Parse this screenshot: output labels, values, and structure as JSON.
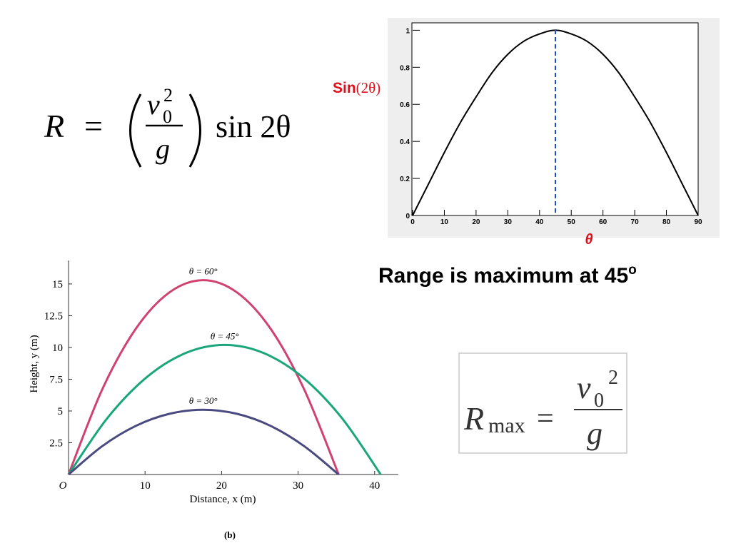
{
  "formula": {
    "lhs": "R",
    "eq": "=",
    "v": "v",
    "sub": "0",
    "sup": "2",
    "g": "g",
    "func": "sin 2θ"
  },
  "chart_data": [
    {
      "type": "line",
      "ylabel": [
        "Sin",
        "(2θ)"
      ],
      "xlabel": "θ",
      "x": [
        0,
        5,
        10,
        15,
        20,
        25,
        30,
        35,
        40,
        45,
        50,
        55,
        60,
        65,
        70,
        75,
        80,
        85,
        90
      ],
      "values": [
        0,
        0.17,
        0.34,
        0.5,
        0.64,
        0.77,
        0.87,
        0.94,
        0.98,
        1,
        0.98,
        0.94,
        0.87,
        0.77,
        0.64,
        0.5,
        0.34,
        0.17,
        0
      ],
      "color": "#000000",
      "marker_line": {
        "x": 45,
        "color": "#1a4fd6"
      },
      "xlim": [
        0,
        90
      ],
      "ylim": [
        0,
        1.04
      ],
      "xticks": [
        0,
        10,
        20,
        30,
        40,
        50,
        60,
        70,
        80,
        90
      ],
      "yticks": [
        0,
        0.2,
        0.4,
        0.6,
        0.8,
        1
      ]
    },
    {
      "type": "trajectory",
      "ylabel": "Height, y (m)",
      "xlabel": "Distance, x (m)",
      "caption": "(b)",
      "series": [
        {
          "name": "θ = 60°",
          "color": "#d0426f",
          "x": [
            0,
            4.4,
            8.8,
            13.2,
            17.6,
            22.0,
            26.4,
            30.8,
            35.3
          ],
          "values": [
            0,
            6.69,
            11.48,
            14.34,
            15.3,
            14.34,
            11.48,
            6.69,
            0
          ]
        },
        {
          "name": "θ = 45°",
          "color": "#1aa67a",
          "x": [
            0,
            5.1,
            10.2,
            15.3,
            20.4,
            25.5,
            30.6,
            35.7,
            40.8
          ],
          "values": [
            0,
            4.46,
            7.65,
            9.56,
            10.2,
            9.56,
            7.65,
            4.46,
            0
          ]
        },
        {
          "name": "θ = 30°",
          "color": "#4a4a80",
          "x": [
            0,
            4.4,
            8.8,
            13.2,
            17.6,
            22.0,
            26.4,
            30.8,
            35.3
          ],
          "values": [
            0,
            2.23,
            3.83,
            4.78,
            5.1,
            4.78,
            3.83,
            2.23,
            0
          ]
        }
      ],
      "xlim": [
        0,
        43.1
      ],
      "ylim": [
        0,
        16.85
      ],
      "xticks": [
        {
          "value": 0,
          "label": "O"
        },
        10,
        20,
        30,
        40
      ],
      "yticks": [
        2.5,
        5,
        7.5,
        10,
        12.5,
        15
      ]
    }
  ],
  "headline": {
    "text": "Range is maximum at 45",
    "sup": "o"
  },
  "rmax": {
    "r": "R",
    "sub": "max",
    "eq": "=",
    "v": "v",
    "vsub": "0",
    "sup": "2",
    "g": "g"
  }
}
